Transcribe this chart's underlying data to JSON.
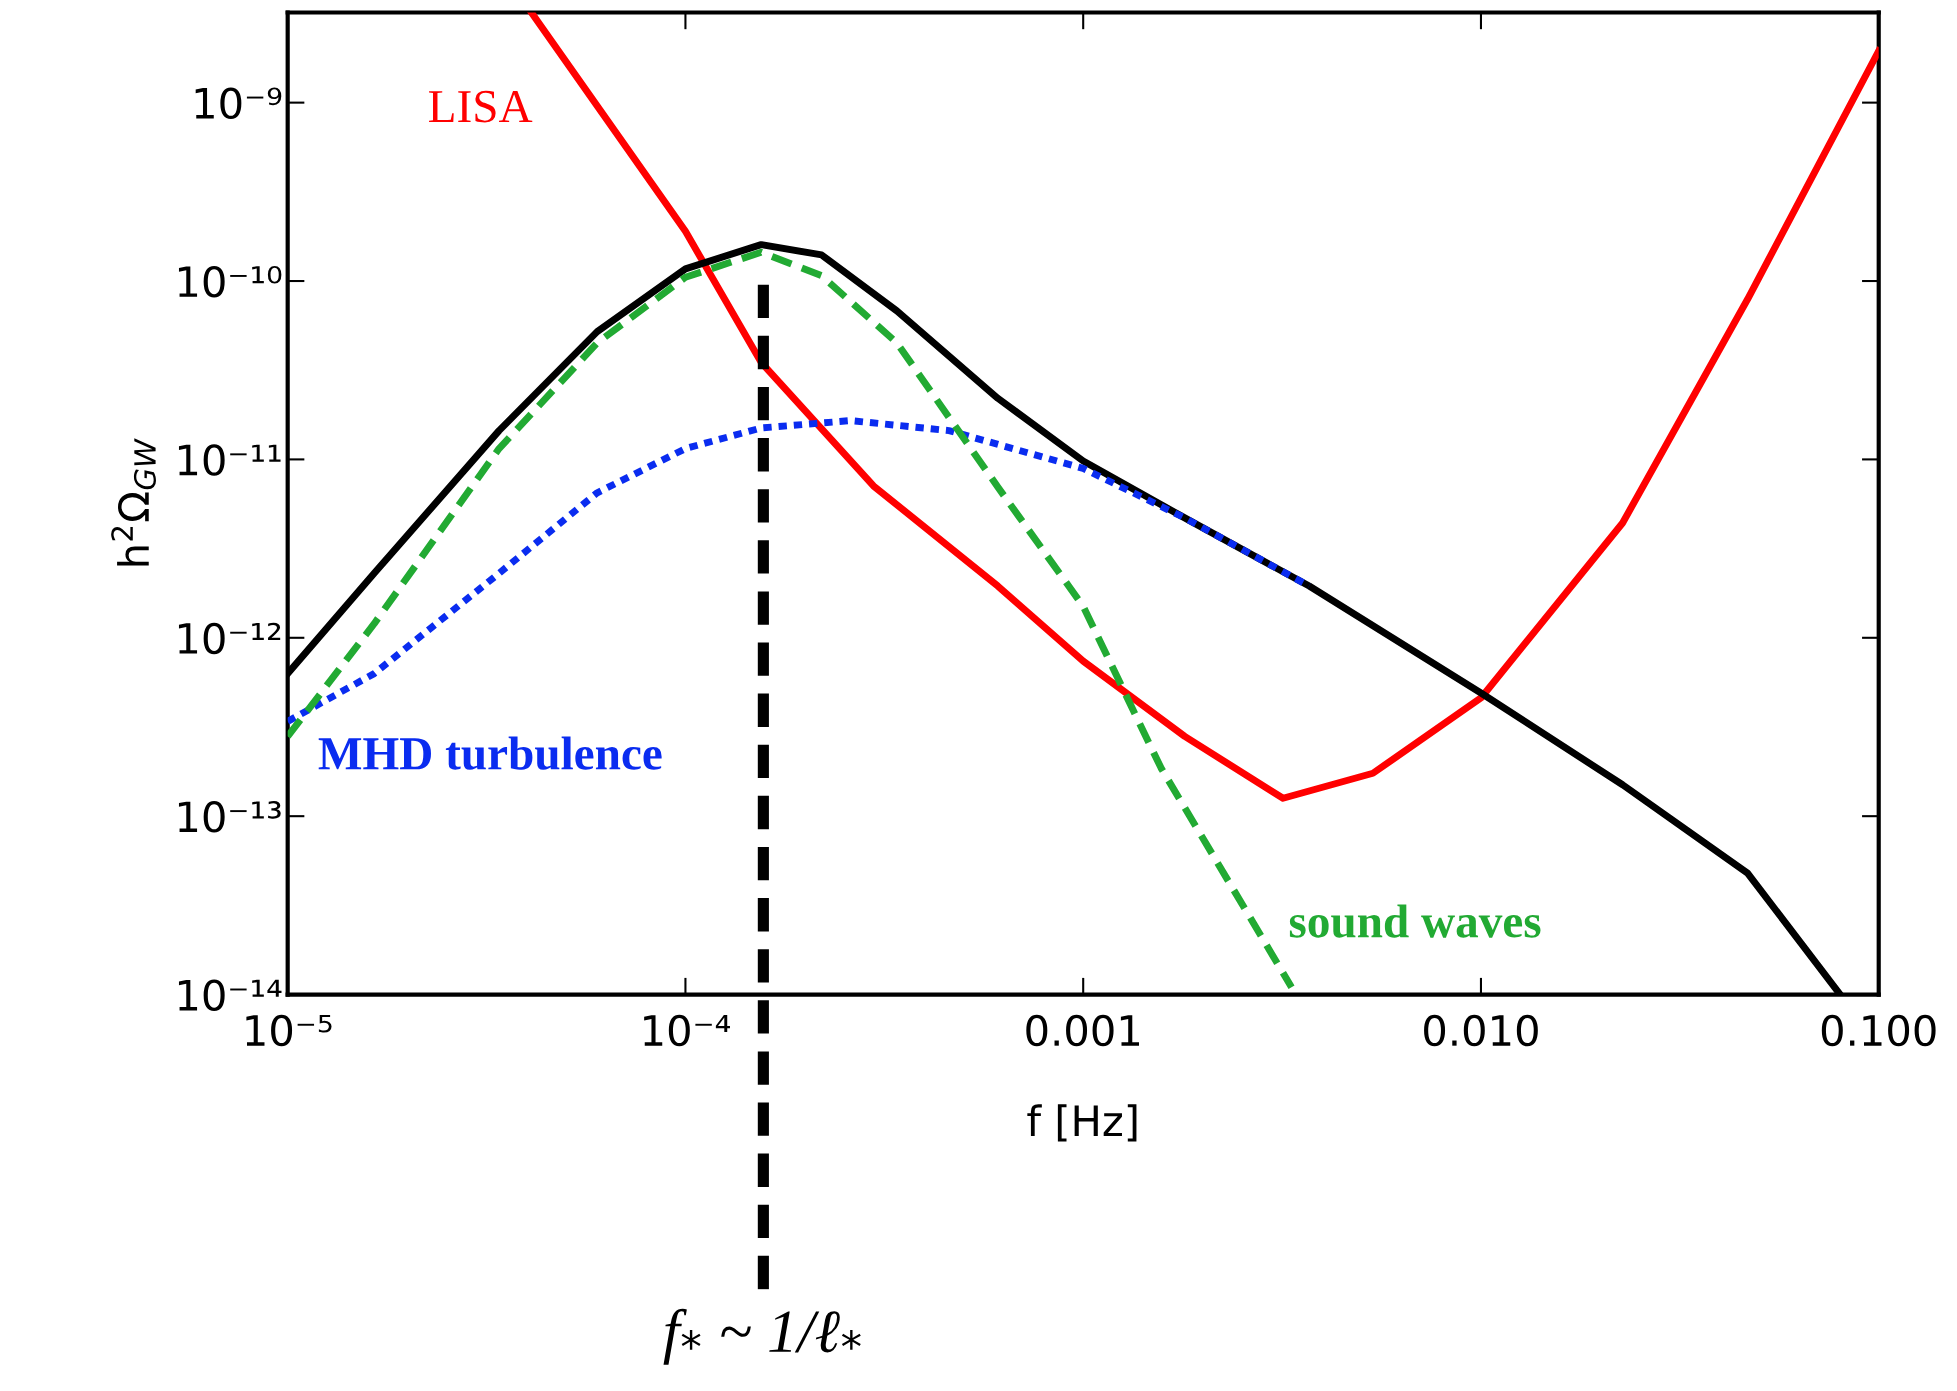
{
  "chart_data": {
    "type": "line",
    "xlabel": "f [Hz]",
    "ylabel": "h$^{2}$Ω$_{GW}$",
    "log": "xy",
    "grid": false,
    "legend": false,
    "xlim": [
      1e-05,
      0.1
    ],
    "ylim": [
      1e-14,
      3.2e-09
    ],
    "xticks": [
      {
        "value": 1e-05,
        "label": "10⁻⁵"
      },
      {
        "value": 0.0001,
        "label": "10⁻⁴"
      },
      0.001,
      {
        "value": 0.01,
        "label": "0.010"
      },
      {
        "value": 0.1,
        "label": "0.100"
      }
    ],
    "yticks": [
      {
        "value": 1e-14,
        "label": "10⁻¹⁴"
      },
      {
        "value": 1e-13,
        "label": "10⁻¹³"
      },
      {
        "value": 1e-12,
        "label": "10⁻¹²"
      },
      {
        "value": 1e-11,
        "label": "10⁻¹¹"
      },
      {
        "value": 1e-10,
        "label": "10⁻¹⁰"
      },
      {
        "value": 1e-09,
        "label": "10⁻⁹"
      }
    ],
    "series": [
      {
        "name": "LISA",
        "color": "#ff0000",
        "line_style": "solid",
        "x": [
          4.1e-05,
          0.0001,
          0.000155,
          0.000297,
          0.00061,
          0.001,
          0.0018,
          0.00318,
          0.00535,
          0.01,
          0.0227,
          0.0468,
          0.1
        ],
        "values": [
          3.2e-09,
          1.9e-10,
          3.5e-11,
          7.1e-12,
          1.95e-12,
          7.4e-13,
          2.8e-13,
          1.26e-13,
          1.74e-13,
          4.6e-13,
          4.4e-12,
          7.9e-11,
          1.95e-09
        ]
      },
      {
        "name": "MHD turbulence",
        "color": "#0a2cf0",
        "line_style": "dotted",
        "x": [
          1e-05,
          1.65e-05,
          3.4e-05,
          6e-05,
          0.0001,
          0.000155,
          0.00026,
          0.00046,
          0.001,
          0.0018,
          0.0037
        ],
        "values": [
          3.4e-13,
          6.3e-13,
          2.3e-12,
          6.5e-12,
          1.15e-11,
          1.5e-11,
          1.65e-11,
          1.45e-11,
          8.9e-12,
          4.7e-12,
          1.95e-12
        ]
      },
      {
        "name": "sound waves",
        "color": "#22aa33",
        "line_style": "dashed",
        "x": [
          1e-05,
          1.65e-05,
          3.4e-05,
          6e-05,
          0.0001,
          0.000155,
          0.00022,
          0.00034,
          0.00061,
          0.001,
          0.00157,
          0.00334
        ],
        "values": [
          2.8e-13,
          1.2e-12,
          1.15e-11,
          4.5e-11,
          1.05e-10,
          1.45e-10,
          1.07e-10,
          4.5e-11,
          7e-12,
          1.5e-12,
          1.86e-13,
          1.1e-14
        ]
      },
      {
        "color": "#000000",
        "line_style": "solid",
        "x": [
          1e-05,
          1.65e-05,
          3.4e-05,
          6e-05,
          0.0001,
          0.000155,
          0.00022,
          0.00034,
          0.00061,
          0.001,
          0.0018,
          0.0037,
          0.01,
          0.0227,
          0.0468,
          0.08
        ],
        "values": [
          6.3e-13,
          2.3e-12,
          1.45e-11,
          5.2e-11,
          1.17e-10,
          1.6e-10,
          1.4e-10,
          6.8e-11,
          2.2e-11,
          9.8e-12,
          4.7e-12,
          1.95e-12,
          4.9e-13,
          1.5e-13,
          4.8e-14,
          1e-14
        ]
      }
    ],
    "ref_lines": [
      {
        "axis": "x",
        "value": 0.000157,
        "label": "f$_{*}$ ~ 1/ℓ$_{*}$",
        "color": "#000000",
        "line_style": "dashed"
      }
    ]
  }
}
